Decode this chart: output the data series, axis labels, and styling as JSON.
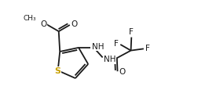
{
  "background": "#ffffff",
  "line_color": "#1a1a1a",
  "S_color": "#c8a000",
  "lw": 1.3,
  "fs": 7.5,
  "xlim": [
    -0.05,
    1.05
  ],
  "ylim": [
    -0.05,
    1.05
  ]
}
